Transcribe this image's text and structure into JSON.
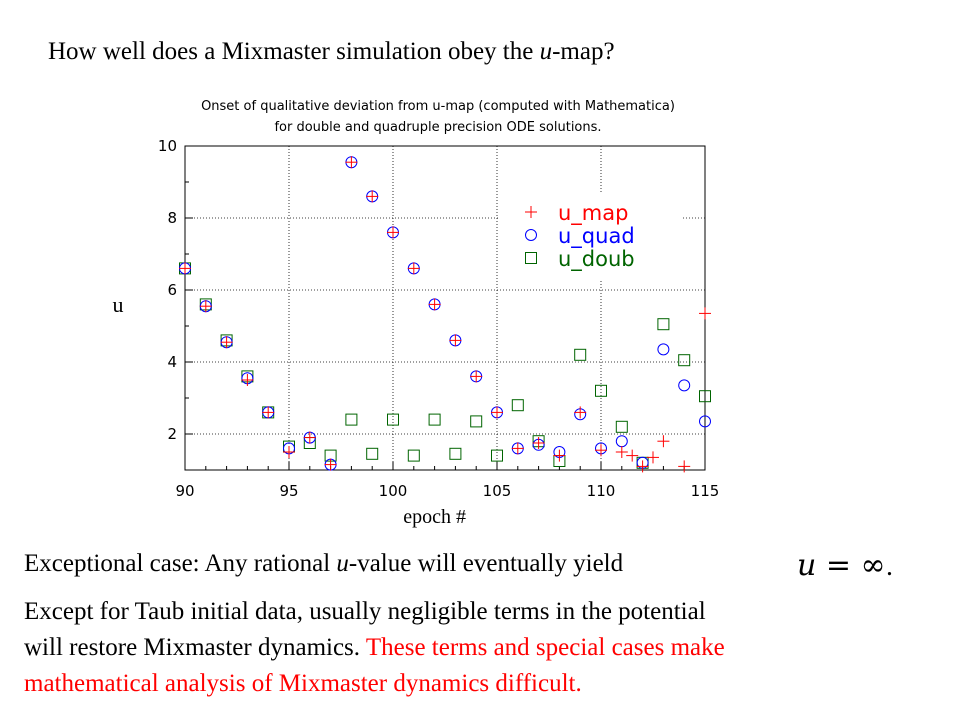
{
  "slide": {
    "title_before": "How well does a Mixmaster  simulation  obey the ",
    "title_italic": "u",
    "title_after": "-map?",
    "exceptional_before": "Exceptional case: Any rational ",
    "exceptional_italic": "u",
    "exceptional_after": "-value will eventually yield",
    "formula": "u = ∞",
    "formula_period": ".",
    "para_line1": "Except for Taub initial data, usually negligible terms in the potential",
    "para_line2_black": "will restore Mixmaster dynamics. ",
    "para_line2_red": "These terms and special cases make",
    "para_line3_red": "mathematical  analysis  of Mixmaster  dynamics  difficult."
  },
  "colors": {
    "u_map": "#ff0000",
    "u_quad": "#0000ff",
    "u_doub": "#006400",
    "emphasis": "#ff0000"
  },
  "chart_data": {
    "type": "scatter",
    "title": "Onset of qualitative deviation from u-map (computed with Mathematica)",
    "subtitle": "for double and quadruple precision ODE solutions.",
    "xlabel": "epoch #",
    "ylabel": "u",
    "xlim": [
      90,
      115
    ],
    "ylim": [
      1,
      10
    ],
    "xticks": [
      "90",
      "95",
      "100",
      "105",
      "110",
      "115"
    ],
    "yticks": [
      "2",
      "4",
      "6",
      "8",
      "10"
    ],
    "grid": true,
    "legend_position": "top-right",
    "series": [
      {
        "name": "u_map",
        "marker": "plus",
        "x": [
          90,
          91,
          92,
          93,
          94,
          95,
          96,
          97,
          98,
          99,
          100,
          101,
          102,
          103,
          104,
          105,
          106,
          107,
          108,
          109,
          110,
          111,
          111.5,
          112,
          112.5,
          113,
          114,
          115
        ],
        "y": [
          6.6,
          5.55,
          4.55,
          3.5,
          2.6,
          1.5,
          1.9,
          1.15,
          9.55,
          8.6,
          7.6,
          6.6,
          5.6,
          4.6,
          3.6,
          2.6,
          1.6,
          1.75,
          1.4,
          2.6,
          1.55,
          1.5,
          1.4,
          1.1,
          1.35,
          1.8,
          1.1,
          5.35
        ]
      },
      {
        "name": "u_quad",
        "marker": "circle",
        "x": [
          90,
          91,
          92,
          93,
          94,
          95,
          96,
          97,
          98,
          99,
          100,
          101,
          102,
          103,
          104,
          105,
          106,
          107,
          108,
          109,
          110,
          111,
          112,
          113,
          114,
          115
        ],
        "y": [
          6.6,
          5.55,
          4.55,
          3.55,
          2.6,
          1.6,
          1.9,
          1.15,
          9.55,
          8.6,
          7.6,
          6.6,
          5.6,
          4.6,
          3.6,
          2.6,
          1.6,
          1.7,
          1.5,
          2.55,
          1.6,
          1.8,
          1.2,
          4.35,
          3.35,
          2.35
        ]
      },
      {
        "name": "u_doub",
        "marker": "square",
        "x": [
          90,
          91,
          92,
          93,
          94,
          95,
          96,
          97,
          98,
          99,
          100,
          101,
          102,
          103,
          104,
          105,
          106,
          107,
          108,
          109,
          110,
          111,
          112,
          113,
          114,
          115
        ],
        "y": [
          6.6,
          5.6,
          4.6,
          3.6,
          2.6,
          1.65,
          1.75,
          1.4,
          2.4,
          1.45,
          2.4,
          1.4,
          2.4,
          1.45,
          2.35,
          1.4,
          2.8,
          1.8,
          1.25,
          4.2,
          3.2,
          2.2,
          1.2,
          5.05,
          4.05,
          3.05
        ]
      }
    ]
  }
}
